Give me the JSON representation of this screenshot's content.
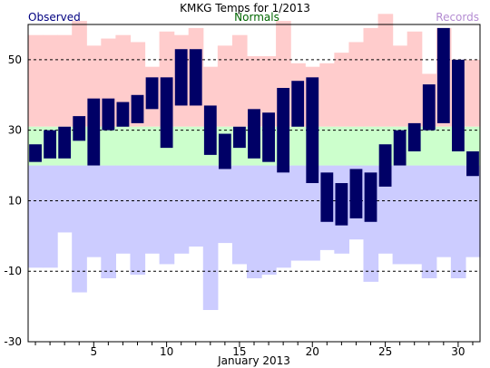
{
  "chart_data": {
    "type": "bar",
    "title": "KMKG Temps for 1/2013",
    "xlabel": "January 2013",
    "ylabel": "",
    "legend": {
      "observed": "Observed",
      "normals": "Normals",
      "records": "Records",
      "placement": "top"
    },
    "colors": {
      "observed": "#000066",
      "observed_label": "#000080",
      "normals_label": "#006600",
      "records_label": "#b48cd2",
      "record_high_band": "#ffcccc",
      "normal_band": "#ccffcc",
      "record_low_band": "#ccccff",
      "grid": "#000000"
    },
    "ylim": [
      -30,
      60
    ],
    "y_ticks": [
      -30,
      -10,
      10,
      30,
      50
    ],
    "x_range": [
      1,
      31
    ],
    "x_ticks": [
      5,
      10,
      15,
      20,
      25,
      30
    ],
    "grid": "dashed horizontal at 50, 30, 10, -10",
    "days": [
      1,
      2,
      3,
      4,
      5,
      6,
      7,
      8,
      9,
      10,
      11,
      12,
      13,
      14,
      15,
      16,
      17,
      18,
      19,
      20,
      21,
      22,
      23,
      24,
      25,
      26,
      27,
      28,
      29,
      30,
      31
    ],
    "normal_high": [
      31,
      31,
      31,
      31,
      31,
      31,
      31,
      31,
      31,
      31,
      31,
      31,
      31,
      31,
      31,
      31,
      31,
      31,
      31,
      31,
      31,
      31,
      31,
      31,
      31,
      31,
      31,
      31,
      31,
      31,
      31
    ],
    "normal_low": [
      20,
      20,
      20,
      20,
      20,
      20,
      20,
      20,
      20,
      20,
      20,
      20,
      20,
      20,
      20,
      20,
      20,
      20,
      20,
      20,
      20,
      20,
      20,
      20,
      20,
      20,
      20,
      20,
      20,
      20,
      20
    ],
    "record_high": [
      57,
      57,
      57,
      61,
      54,
      56,
      57,
      55,
      48,
      58,
      57,
      59,
      48,
      54,
      57,
      51,
      51,
      61,
      49,
      48,
      49,
      52,
      55,
      59,
      63,
      54,
      58,
      46,
      59,
      50,
      50
    ],
    "record_low": [
      -9,
      -9,
      1,
      -16,
      -6,
      -12,
      -5,
      -11,
      -5,
      -8,
      -5,
      -3,
      -21,
      -2,
      -8,
      -12,
      -11,
      -9,
      -7,
      -7,
      -4,
      -5,
      -1,
      -13,
      -5,
      -8,
      -8,
      -12,
      -6,
      -12,
      -6
    ],
    "series": [
      {
        "name": "Observed",
        "high": [
          26,
          30,
          31,
          34,
          39,
          39,
          38,
          40,
          45,
          45,
          53,
          53,
          37,
          29,
          31,
          36,
          35,
          42,
          44,
          45,
          18,
          15,
          19,
          18,
          26,
          30,
          32,
          43,
          59,
          50,
          24
        ],
        "low": [
          21,
          22,
          22,
          27,
          20,
          30,
          31,
          32,
          36,
          25,
          37,
          37,
          23,
          19,
          25,
          22,
          21,
          18,
          31,
          15,
          4,
          3,
          5,
          4,
          14,
          20,
          24,
          30,
          32,
          24,
          17
        ]
      }
    ]
  }
}
